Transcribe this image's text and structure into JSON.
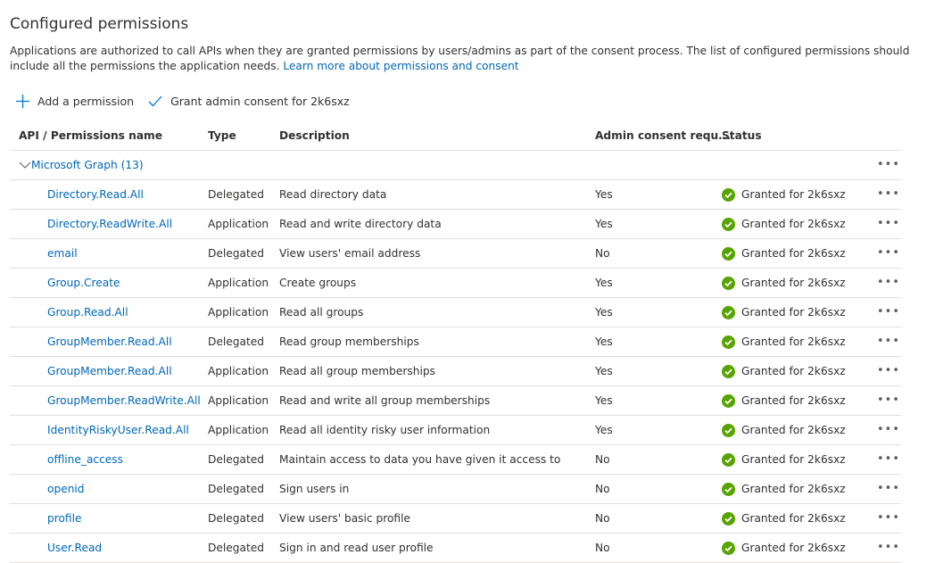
{
  "title": "Configured permissions",
  "description": "Applications are authorized to call APIs when they are granted permissions by users/admins as part of the consent process. The list of configured permissions should include all the permissions the application needs.",
  "learn_more": "Learn more about permissions and consent",
  "toolbar": {
    "add": "Add a permission",
    "grant": "Grant admin consent for 2k6sxz"
  },
  "columns": [
    "API / Permissions name",
    "Type",
    "Description",
    "Admin consent requ...",
    "Status"
  ],
  "group": {
    "label": "Microsoft Graph (13)"
  },
  "more": "•••",
  "colors": {
    "link": "#0067b8",
    "success": "#57a300"
  },
  "rows": [
    {
      "name": "Directory.Read.All",
      "type": "Delegated",
      "desc": "Read directory data",
      "admin": "Yes",
      "status": "Granted for 2k6sxz"
    },
    {
      "name": "Directory.ReadWrite.All",
      "type": "Application",
      "desc": "Read and write directory data",
      "admin": "Yes",
      "status": "Granted for 2k6sxz"
    },
    {
      "name": "email",
      "type": "Delegated",
      "desc": "View users' email address",
      "admin": "No",
      "status": "Granted for 2k6sxz"
    },
    {
      "name": "Group.Create",
      "type": "Application",
      "desc": "Create groups",
      "admin": "Yes",
      "status": "Granted for 2k6sxz"
    },
    {
      "name": "Group.Read.All",
      "type": "Application",
      "desc": "Read all groups",
      "admin": "Yes",
      "status": "Granted for 2k6sxz"
    },
    {
      "name": "GroupMember.Read.All",
      "type": "Delegated",
      "desc": "Read group memberships",
      "admin": "Yes",
      "status": "Granted for 2k6sxz"
    },
    {
      "name": "GroupMember.Read.All",
      "type": "Application",
      "desc": "Read all group memberships",
      "admin": "Yes",
      "status": "Granted for 2k6sxz"
    },
    {
      "name": "GroupMember.ReadWrite.All",
      "type": "Application",
      "desc": "Read and write all group memberships",
      "admin": "Yes",
      "status": "Granted for 2k6sxz"
    },
    {
      "name": "IdentityRiskyUser.Read.All",
      "type": "Application",
      "desc": "Read all identity risky user information",
      "admin": "Yes",
      "status": "Granted for 2k6sxz"
    },
    {
      "name": "offline_access",
      "type": "Delegated",
      "desc": "Maintain access to data you have given it access to",
      "admin": "No",
      "status": "Granted for 2k6sxz"
    },
    {
      "name": "openid",
      "type": "Delegated",
      "desc": "Sign users in",
      "admin": "No",
      "status": "Granted for 2k6sxz"
    },
    {
      "name": "profile",
      "type": "Delegated",
      "desc": "View users' basic profile",
      "admin": "No",
      "status": "Granted for 2k6sxz"
    },
    {
      "name": "User.Read",
      "type": "Delegated",
      "desc": "Sign in and read user profile",
      "admin": "No",
      "status": "Granted for 2k6sxz"
    }
  ]
}
